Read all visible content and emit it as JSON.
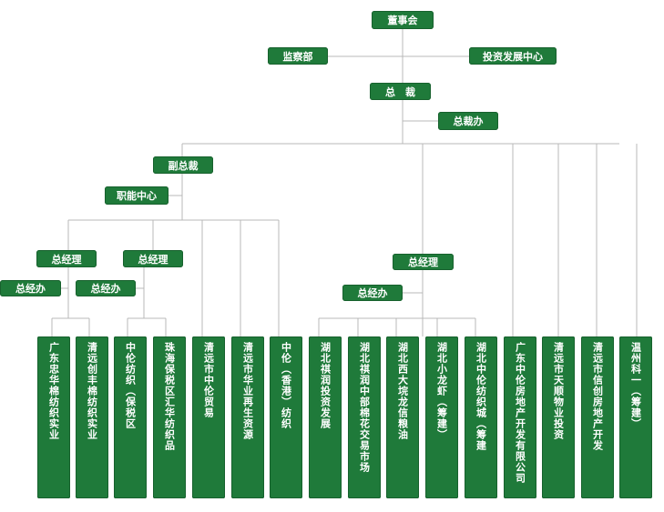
{
  "nodes": {
    "board": "董事会",
    "supervision": "监察部",
    "investment_center": "投资发展中心",
    "president": "总　裁",
    "president_office": "总裁办",
    "vice_president": "副总裁",
    "function_center": "职能中心",
    "gm_left_1": "总经理",
    "gm_left_2": "总经理",
    "gm_right": "总经理",
    "gmo_left_1": "总经办",
    "gmo_left_2": "总经办",
    "gmo_right": "总经办"
  },
  "subsidiaries": [
    "广东忠华棉纺织实业",
    "清远创丰棉纺织实业",
    "中伦纺织（保税区",
    "珠海保税区汇华纺织品",
    "清远市中伦贸易",
    "清远市华业再生资源",
    "中伦（香港）纺织",
    "湖北祺润投资发展",
    "湖北祺润中部棉花交易市场",
    "湖北西大垸龙信粮油",
    "湖北小龙虾（筹建）",
    "湖北中伦纺织城（筹建",
    "广东中伦房地产开发有限公司",
    "清远市天顺物业投资",
    "清远市信创房地产开发",
    "温州科一（筹建）"
  ],
  "colors": {
    "box_fill": "#1f7a3a",
    "box_text": "#ffffff",
    "connector": "#b9b9b9"
  }
}
